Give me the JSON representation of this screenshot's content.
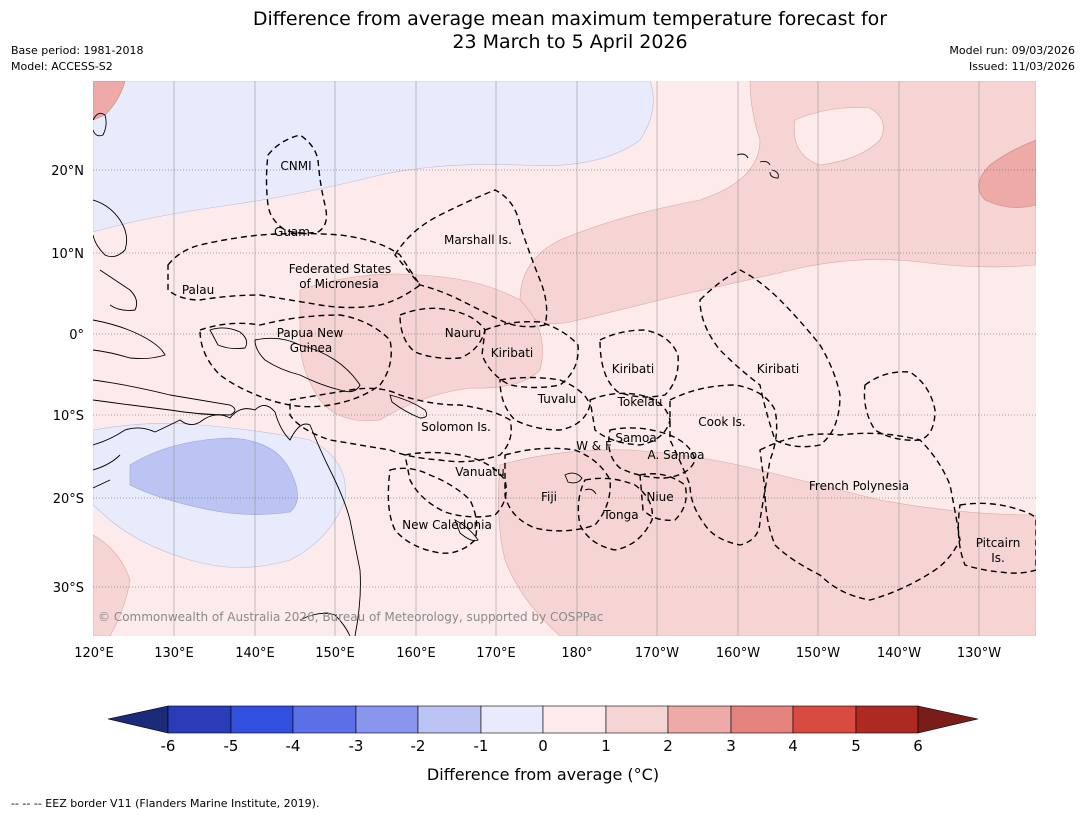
{
  "title": {
    "line1": "Difference from average mean maximum temperature forecast for",
    "line2": "23 March to 5 April 2026"
  },
  "meta": {
    "base_period": "Base period: 1981-2018",
    "model": "Model: ACCESS-S2",
    "model_run": "Model run: 09/03/2026",
    "issued": "Issued: 11/03/2026"
  },
  "axes": {
    "lon_labels": [
      "120°E",
      "130°E",
      "140°E",
      "150°E",
      "160°E",
      "170°E",
      "180°",
      "170°W",
      "160°W",
      "150°W",
      "140°W",
      "130°W"
    ],
    "lat_labels": [
      "20°N",
      "10°N",
      "0°",
      "10°S",
      "20°S",
      "30°S"
    ]
  },
  "regions": [
    {
      "id": "cnmi",
      "label": "CNMI"
    },
    {
      "id": "guam",
      "label": "Guam"
    },
    {
      "id": "marshall",
      "label": "Marshall Is."
    },
    {
      "id": "fsm",
      "label": "Federated States"
    },
    {
      "id": "fsm2",
      "label": "of Micronesia"
    },
    {
      "id": "palau",
      "label": "Palau"
    },
    {
      "id": "png",
      "label": "Papua New"
    },
    {
      "id": "png2",
      "label": "Guinea"
    },
    {
      "id": "nauru",
      "label": "Nauru"
    },
    {
      "id": "kiribati_w",
      "label": "Kiribati"
    },
    {
      "id": "kiribati_c",
      "label": "Kiribati"
    },
    {
      "id": "kiribati_e",
      "label": "Kiribati"
    },
    {
      "id": "tuvalu",
      "label": "Tuvalu"
    },
    {
      "id": "tokelau",
      "label": "Tokelau"
    },
    {
      "id": "cook",
      "label": "Cook Is."
    },
    {
      "id": "solomon",
      "label": "Solomon Is."
    },
    {
      "id": "samoa",
      "label": "Samoa"
    },
    {
      "id": "wf",
      "label": "W & F"
    },
    {
      "id": "asamoa",
      "label": "A. Samoa"
    },
    {
      "id": "vanuatu",
      "label": "Vanuatu"
    },
    {
      "id": "fiji",
      "label": "Fiji"
    },
    {
      "id": "niue",
      "label": "Niue"
    },
    {
      "id": "tonga",
      "label": "Tonga"
    },
    {
      "id": "frpoly",
      "label": "French Polynesia"
    },
    {
      "id": "newcal",
      "label": "New Caledonia"
    },
    {
      "id": "pitcairn",
      "label": "Pitcairn"
    },
    {
      "id": "pitcairn2",
      "label": "Is."
    }
  ],
  "copyright": "© Commonwealth of Australia 2026, Bureau of Meteorology, supported by COSPPac",
  "colorbar": {
    "ticks": [
      "-6",
      "-5",
      "-4",
      "-3",
      "-2",
      "-1",
      "0",
      "1",
      "2",
      "3",
      "4",
      "5",
      "6"
    ],
    "colors": [
      "#1c2a7a",
      "#2a3db8",
      "#3250e0",
      "#5b70e6",
      "#8896ed",
      "#bcc4f4",
      "#e8ebfb",
      "#fcebea",
      "#f5d4d3",
      "#edaaa6",
      "#e4827c",
      "#d94a40",
      "#ad2a22",
      "#7a1c18"
    ],
    "title": "Difference from average (°C)"
  },
  "footnote": "--  --  -- EEZ border V11 (Flanders Marine Institute, 2019)."
}
